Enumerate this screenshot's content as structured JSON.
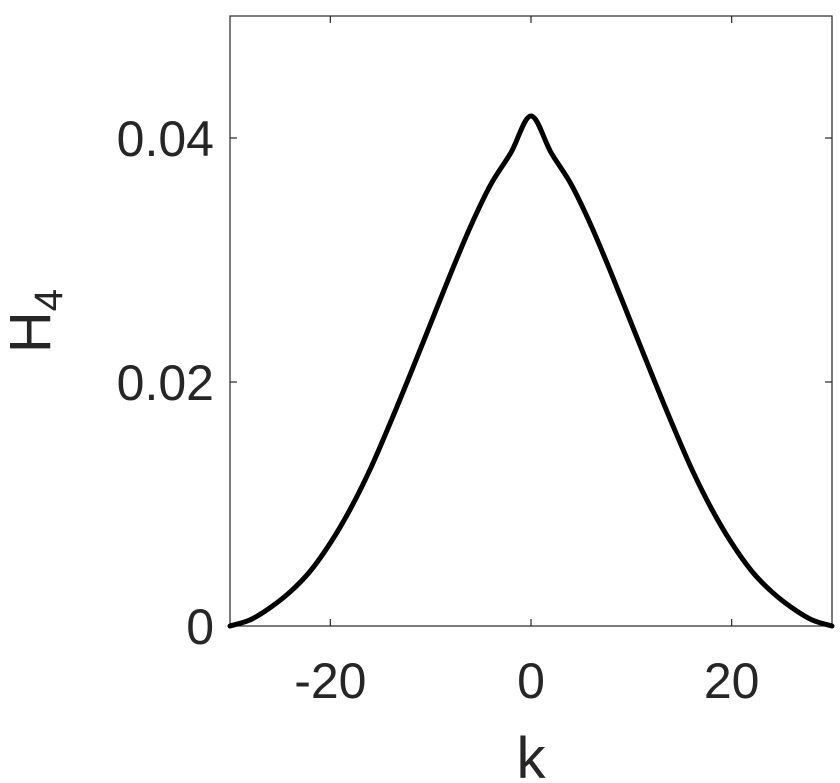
{
  "chart_data": {
    "type": "line",
    "title": "",
    "xlabel": "k",
    "ylabel": "H",
    "ylabel_subscript": "4",
    "xlim": [
      -30,
      30
    ],
    "ylim": [
      0,
      0.05
    ],
    "xticks": [
      -20,
      0,
      20
    ],
    "xtick_labels": [
      "-20",
      "0",
      "20"
    ],
    "yticks": [
      0,
      0.02,
      0.04
    ],
    "ytick_labels": [
      "0",
      "0.02",
      "0.04"
    ],
    "grid": false,
    "legend": "none",
    "line_color": "#000000",
    "series": [
      {
        "x": [
          -30,
          -28,
          -26,
          -24,
          -22,
          -20,
          -18,
          -16,
          -14,
          -12,
          -10,
          -8,
          -6,
          -4,
          -2,
          0,
          2,
          4,
          6,
          8,
          10,
          12,
          14,
          16,
          18,
          20,
          22,
          24,
          26,
          28,
          30
        ],
        "values": [
          0.0,
          0.0005,
          0.0015,
          0.0028,
          0.0045,
          0.0068,
          0.0096,
          0.0129,
          0.0167,
          0.0207,
          0.0248,
          0.0289,
          0.0328,
          0.0362,
          0.0388,
          0.0418,
          0.0388,
          0.0362,
          0.0328,
          0.0289,
          0.0248,
          0.0207,
          0.0167,
          0.0129,
          0.0096,
          0.0068,
          0.0045,
          0.0028,
          0.0015,
          0.0005,
          0.0
        ]
      }
    ]
  }
}
